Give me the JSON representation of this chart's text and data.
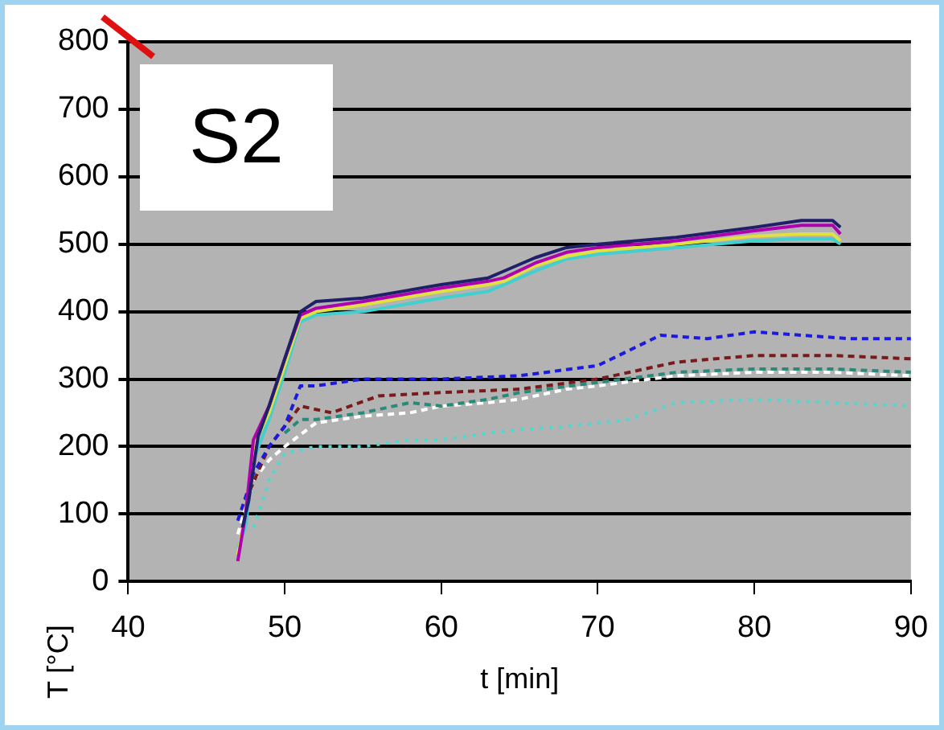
{
  "chart_data": {
    "type": "line",
    "xlabel": "t [min]",
    "ylabel": "T [°C]",
    "annotations": [
      "S2"
    ],
    "xlim": [
      40,
      90
    ],
    "xticks": [
      40,
      50,
      60,
      70,
      80,
      90
    ],
    "ylim": [
      0,
      800
    ],
    "yticks": [
      0,
      100,
      200,
      300,
      400,
      500,
      600,
      700,
      800
    ],
    "grid": "y",
    "legend": false,
    "marker": "none",
    "series": [
      {
        "color": "#20206a",
        "line_style": "solid",
        "x": [
          47.3,
          47.7,
          48.3,
          49,
          50,
          51,
          52,
          55,
          60,
          63,
          64,
          66,
          68,
          70,
          75,
          80,
          83,
          85,
          85.5
        ],
        "values": [
          80,
          120,
          215,
          260,
          330,
          400,
          415,
          420,
          440,
          450,
          460,
          480,
          495,
          500,
          510,
          525,
          535,
          535,
          525
        ]
      },
      {
        "color": "#b000b0",
        "line_style": "solid",
        "x": [
          47,
          47.5,
          48,
          49,
          50,
          51,
          52,
          55,
          60,
          63,
          64,
          66,
          68,
          70,
          75,
          80,
          83,
          85,
          85.5
        ],
        "values": [
          30,
          100,
          210,
          260,
          330,
          395,
          405,
          415,
          435,
          445,
          450,
          472,
          488,
          495,
          505,
          520,
          528,
          528,
          515
        ]
      },
      {
        "color": "#e0e040",
        "line_style": "solid",
        "x": [
          47,
          47.5,
          48,
          49,
          50,
          51,
          52,
          55,
          60,
          63,
          64,
          66,
          68,
          70,
          75,
          80,
          83,
          85,
          85.5
        ],
        "values": [
          40,
          100,
          200,
          250,
          320,
          390,
          400,
          410,
          430,
          440,
          445,
          468,
          482,
          490,
          500,
          512,
          515,
          515,
          505
        ]
      },
      {
        "color": "#40d0d0",
        "line_style": "solid",
        "x": [
          47,
          47.5,
          48,
          49,
          50,
          51,
          52,
          55,
          60,
          63,
          64,
          66,
          68,
          70,
          75,
          80,
          83,
          85,
          85.5
        ],
        "values": [
          50,
          80,
          180,
          240,
          310,
          385,
          395,
          400,
          420,
          430,
          440,
          460,
          478,
          485,
          495,
          505,
          508,
          508,
          500
        ]
      },
      {
        "color": "#1a1ae0",
        "line_style": "dashed",
        "x": [
          47,
          48,
          49,
          50,
          51,
          52,
          55,
          60,
          65,
          70,
          74,
          77,
          80,
          83,
          86,
          90
        ],
        "values": [
          90,
          160,
          200,
          230,
          290,
          290,
          300,
          300,
          305,
          320,
          365,
          360,
          370,
          365,
          360,
          360
        ]
      },
      {
        "color": "#7a1a1a",
        "line_style": "dashed",
        "x": [
          47.5,
          49,
          51,
          53,
          56,
          60,
          65,
          70,
          75,
          80,
          85,
          90
        ],
        "values": [
          120,
          200,
          260,
          250,
          275,
          280,
          285,
          300,
          325,
          335,
          335,
          330
        ]
      },
      {
        "color": "#2a8a7a",
        "line_style": "dashed",
        "x": [
          50,
          51,
          52,
          55,
          58,
          60,
          63,
          65,
          70,
          75,
          80,
          85,
          90
        ],
        "values": [
          220,
          240,
          240,
          250,
          265,
          260,
          270,
          280,
          295,
          310,
          315,
          315,
          310
        ]
      },
      {
        "color": "#ffffff",
        "line_style": "dashed",
        "x": [
          47,
          48,
          49,
          50,
          52,
          55,
          58,
          60,
          63,
          65,
          68,
          70,
          75,
          80,
          85,
          90
        ],
        "values": [
          70,
          150,
          180,
          200,
          235,
          245,
          250,
          260,
          265,
          270,
          285,
          290,
          305,
          310,
          310,
          305
        ]
      },
      {
        "color": "#50d8d0",
        "line_style": "dotted",
        "x": [
          48,
          49,
          50,
          52,
          55,
          58,
          60,
          63,
          65,
          68,
          70,
          72,
          75,
          80,
          85,
          90
        ],
        "values": [
          80,
          150,
          190,
          200,
          200,
          210,
          210,
          220,
          225,
          230,
          235,
          240,
          265,
          270,
          265,
          260
        ]
      }
    ]
  }
}
